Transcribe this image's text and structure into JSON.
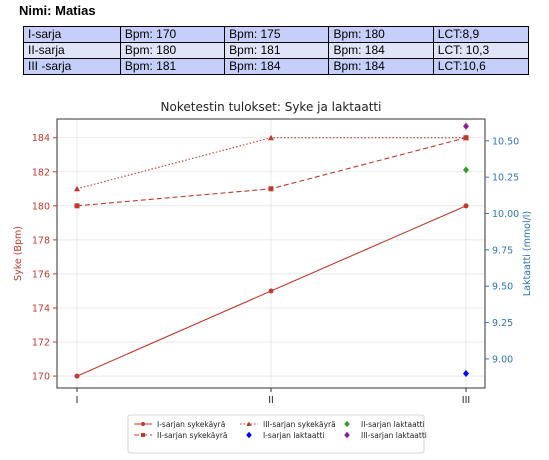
{
  "header": {
    "name_label": "Nimi: Matias"
  },
  "table": {
    "rows": [
      [
        "I-sarja",
        "Bpm: 170",
        "Bpm: 175",
        "Bpm: 180",
        "LCT:8,9"
      ],
      [
        "II-sarja",
        "Bpm: 180",
        "Bpm: 181",
        "Bpm: 184",
        "LCT: 10,3"
      ],
      [
        "III -sarja",
        "Bpm: 181",
        "Bpm: 184",
        "Bpm: 184",
        "LCT:10,6"
      ]
    ]
  },
  "chart_data": {
    "type": "line",
    "title": "Noketestin tulokset: Syke ja laktaatti",
    "categories": [
      "I",
      "II",
      "III"
    ],
    "y_left": {
      "label": "Syke (Bpm)",
      "lim": [
        169.3,
        185.1
      ],
      "ticks": [
        170,
        172,
        174,
        176,
        178,
        180,
        182,
        184
      ],
      "color": "#c0392b"
    },
    "y_right": {
      "label": "Laktaatti (mmol/l)",
      "lim": [
        8.8,
        10.65
      ],
      "ticks": [
        "9.00",
        "9.25",
        "9.50",
        "9.75",
        "10.00",
        "10.25",
        "10.50"
      ],
      "color": "#2e75b6"
    },
    "series": [
      {
        "name": "I-sarjan sykekäyrä",
        "axis": "left",
        "style": "solid",
        "marker": "circle",
        "color": "#c0392b",
        "values": [
          170,
          175,
          180
        ]
      },
      {
        "name": "II-sarjan sykekäyrä",
        "axis": "left",
        "style": "dashed",
        "marker": "square",
        "color": "#c0392b",
        "values": [
          180,
          181,
          184
        ]
      },
      {
        "name": "III-sarjan sykekäyrä",
        "axis": "left",
        "style": "dotted",
        "marker": "triangle",
        "color": "#c0392b",
        "values": [
          181,
          184,
          184
        ]
      },
      {
        "name": "I-sarjan laktaatti",
        "axis": "right",
        "style": "none",
        "marker": "diamond",
        "color": "#0000ff",
        "points": [
          {
            "x": "III",
            "y": 8.9
          }
        ]
      },
      {
        "name": "II-sarjan laktaatti",
        "axis": "right",
        "style": "none",
        "marker": "diamond",
        "color": "#2ca02c",
        "points": [
          {
            "x": "III",
            "y": 10.3
          }
        ]
      },
      {
        "name": "III-sarjan laktaatti",
        "axis": "right",
        "style": "none",
        "marker": "diamond",
        "color": "#8e1a9c",
        "points": [
          {
            "x": "III",
            "y": 10.6
          }
        ]
      }
    ],
    "legend_position": "bottom",
    "grid": true
  }
}
